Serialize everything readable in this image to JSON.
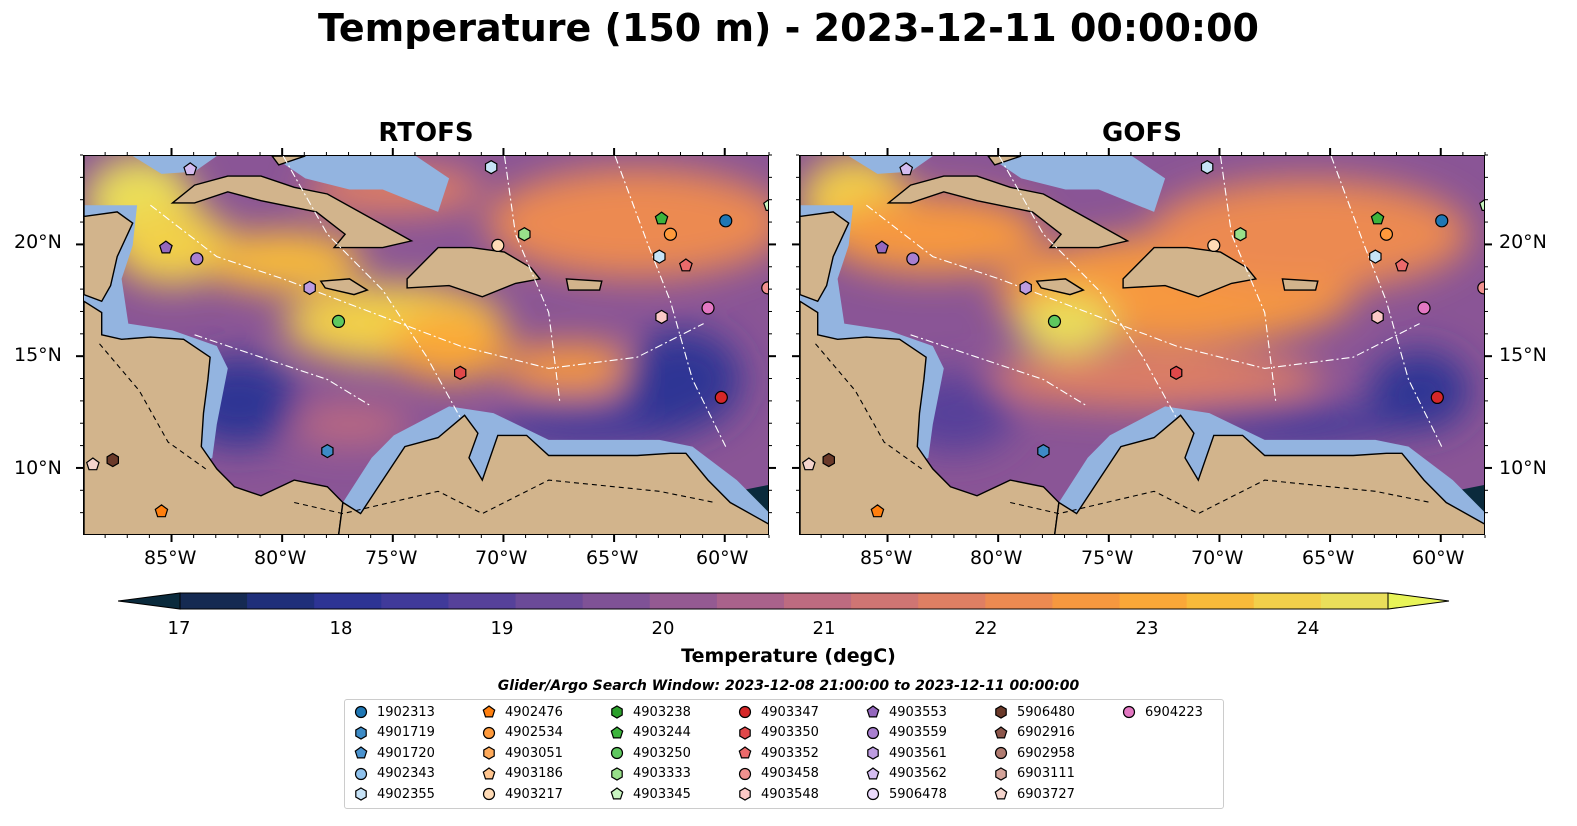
{
  "title": "Temperature (150 m) - 2023-12-11 00:00:00",
  "panels": [
    {
      "name": "RTOFS"
    },
    {
      "name": "GOFS"
    }
  ],
  "x_ticks": [
    "85°W",
    "80°W",
    "75°W",
    "70°W",
    "65°W",
    "60°W"
  ],
  "y_ticks": [
    "20°N",
    "15°N",
    "10°N"
  ],
  "colorbar": {
    "label": "Temperature (degC)",
    "ticks": [
      "17",
      "18",
      "19",
      "20",
      "21",
      "22",
      "23",
      "24"
    ],
    "vmin": 16.75,
    "vmax": 24.5,
    "extend": "both",
    "colormap": "thermal",
    "colors": [
      "#0a2a3c",
      "#152a52",
      "#1f2f7a",
      "#2d3494",
      "#403a9a",
      "#56419a",
      "#6b4a98",
      "#7f5296",
      "#945a92",
      "#a9628b",
      "#bd6b80",
      "#cf7573",
      "#df7f63",
      "#ec8a51",
      "#f6983f",
      "#faa838",
      "#f8bb3a",
      "#f2d04a",
      "#eadf5a",
      "#e8f458"
    ]
  },
  "legend": {
    "title": "Glider/Argo Search Window: 2023-12-08 21:00:00 to 2023-12-11 00:00:00",
    "items": [
      {
        "id": "1902313",
        "shape": "circle",
        "color": "#1f77b4"
      },
      {
        "id": "4901719",
        "shape": "hexagon",
        "color": "#3d8bc6"
      },
      {
        "id": "4901720",
        "shape": "pentagon",
        "color": "#4a93cf"
      },
      {
        "id": "4902343",
        "shape": "circle",
        "color": "#8ec1ec"
      },
      {
        "id": "4902355",
        "shape": "hexagon",
        "color": "#c7e3f7"
      },
      {
        "id": "4902476",
        "shape": "pentagon",
        "color": "#ff7f0e"
      },
      {
        "id": "4902534",
        "shape": "circle",
        "color": "#ff9a3c"
      },
      {
        "id": "4903051",
        "shape": "hexagon",
        "color": "#ffaa5a"
      },
      {
        "id": "4903186",
        "shape": "pentagon",
        "color": "#ffc58f"
      },
      {
        "id": "4903217",
        "shape": "circle",
        "color": "#ffdbb6"
      },
      {
        "id": "4903238",
        "shape": "hexagon",
        "color": "#2ca02c"
      },
      {
        "id": "4903244",
        "shape": "pentagon",
        "color": "#3cb43c"
      },
      {
        "id": "4903250",
        "shape": "circle",
        "color": "#5fc85f"
      },
      {
        "id": "4903333",
        "shape": "hexagon",
        "color": "#98df8a"
      },
      {
        "id": "4903345",
        "shape": "pentagon",
        "color": "#c9f5c1"
      },
      {
        "id": "4903347",
        "shape": "circle",
        "color": "#d62728"
      },
      {
        "id": "4903350",
        "shape": "hexagon",
        "color": "#e0484a"
      },
      {
        "id": "4903352",
        "shape": "pentagon",
        "color": "#eb6a6b"
      },
      {
        "id": "4903458",
        "shape": "circle",
        "color": "#f0918f"
      },
      {
        "id": "4903548",
        "shape": "hexagon",
        "color": "#fbc9c7"
      },
      {
        "id": "4903553",
        "shape": "pentagon",
        "color": "#9467bd"
      },
      {
        "id": "4903559",
        "shape": "circle",
        "color": "#a97fd0"
      },
      {
        "id": "4903561",
        "shape": "hexagon",
        "color": "#bd9ce0"
      },
      {
        "id": "4903562",
        "shape": "pentagon",
        "color": "#d4bcf0"
      },
      {
        "id": "5906478",
        "shape": "circle",
        "color": "#ead9fb"
      },
      {
        "id": "5906480",
        "shape": "hexagon",
        "color": "#6b3a2a"
      },
      {
        "id": "6902916",
        "shape": "pentagon",
        "color": "#8c564b"
      },
      {
        "id": "6902958",
        "shape": "circle",
        "color": "#b07b70"
      },
      {
        "id": "6903111",
        "shape": "hexagon",
        "color": "#d4a399"
      },
      {
        "id": "6903727",
        "shape": "pentagon",
        "color": "#f4d4cc"
      },
      {
        "id": "6904223",
        "shape": "circle",
        "color": "#e377c2"
      }
    ]
  },
  "markers": [
    {
      "id": "4903562",
      "lon": -84.2,
      "lat": 23.4
    },
    {
      "id": "4902355",
      "lon": -70.6,
      "lat": 23.5
    },
    {
      "id": "4903553",
      "lon": -85.3,
      "lat": 19.9
    },
    {
      "id": "4903559",
      "lon": -83.9,
      "lat": 19.4
    },
    {
      "id": "4903244",
      "lon": -62.9,
      "lat": 21.2
    },
    {
      "id": "1902313",
      "lon": -60.0,
      "lat": 21.1
    },
    {
      "id": "4902534",
      "lon": -62.5,
      "lat": 20.5
    },
    {
      "id": "4903345",
      "lon": -58.0,
      "lat": 21.8
    },
    {
      "id": "4903333",
      "lon": -69.1,
      "lat": 20.5
    },
    {
      "id": "4903217",
      "lon": -70.3,
      "lat": 20.0
    },
    {
      "id": "4902355",
      "lon": -63.0,
      "lat": 19.5
    },
    {
      "id": "4903352",
      "lon": -61.8,
      "lat": 19.1
    },
    {
      "id": "4903561",
      "lon": -78.8,
      "lat": 18.1
    },
    {
      "id": "4903250",
      "lon": -77.5,
      "lat": 16.6
    },
    {
      "id": "4903548",
      "lon": -62.9,
      "lat": 16.8
    },
    {
      "id": "6904223",
      "lon": -60.8,
      "lat": 17.2
    },
    {
      "id": "4903458",
      "lon": -58.1,
      "lat": 18.1
    },
    {
      "id": "4903350",
      "lon": -72.0,
      "lat": 14.3
    },
    {
      "id": "4903347",
      "lon": -60.2,
      "lat": 13.2
    },
    {
      "id": "4901719",
      "lon": -78.0,
      "lat": 10.8
    },
    {
      "id": "6903727",
      "lon": -88.6,
      "lat": 10.2
    },
    {
      "id": "5906480",
      "lon": -87.7,
      "lat": 10.4
    },
    {
      "id": "4902476",
      "lon": -85.5,
      "lat": 8.1
    }
  ]
}
